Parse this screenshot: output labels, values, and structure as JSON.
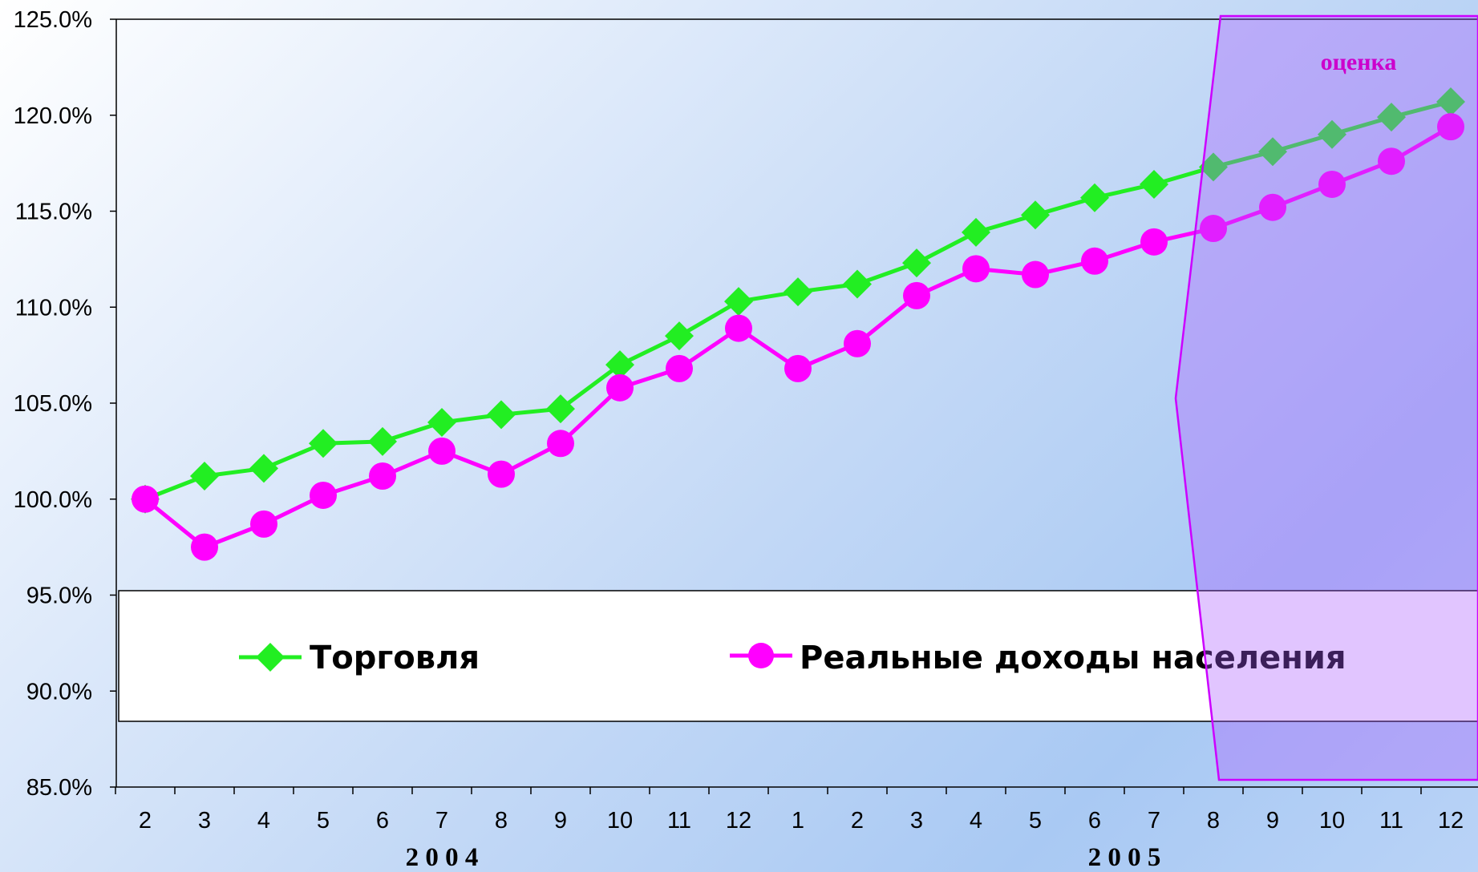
{
  "chart_data": {
    "type": "line",
    "title": "",
    "xlabel": "",
    "ylabel": "",
    "ylim": [
      85,
      125
    ],
    "yticks": [
      "125.0%",
      "120.0%",
      "115.0%",
      "110.0%",
      "105.0%",
      "100.0%",
      "95.0%",
      "90.0%",
      "85.0%"
    ],
    "categories": [
      "2",
      "3",
      "4",
      "5",
      "6",
      "7",
      "8",
      "9",
      "10",
      "11",
      "12",
      "1",
      "2",
      "3",
      "4",
      "5",
      "6",
      "7",
      "8",
      "9",
      "10",
      "11",
      "12"
    ],
    "years": [
      {
        "label": "2 0 0 4",
        "start_index": 0,
        "end_index": 10
      },
      {
        "label": "2 0 0 5",
        "start_index": 11,
        "end_index": 22
      }
    ],
    "series": [
      {
        "name": "Торговля",
        "color": "#22ee22",
        "marker": "diamond",
        "values": [
          100.0,
          101.2,
          101.6,
          102.9,
          103.0,
          104.0,
          104.4,
          104.7,
          107.0,
          108.5,
          110.3,
          110.8,
          111.2,
          112.3,
          113.9,
          114.8,
          115.7,
          116.4,
          117.3,
          118.1,
          119.0,
          119.9,
          120.7
        ]
      },
      {
        "name": "Реальные доходы населения",
        "color": "#ff00ff",
        "marker": "circle",
        "values": [
          100.0,
          97.5,
          98.7,
          100.2,
          101.2,
          102.5,
          101.3,
          102.9,
          105.8,
          106.8,
          108.9,
          106.8,
          108.1,
          110.6,
          112.0,
          111.7,
          112.4,
          113.4,
          114.1,
          115.2,
          116.4,
          117.6,
          119.4
        ]
      }
    ],
    "annotation": {
      "text": "оценка",
      "color": "#cc00cc",
      "start_index": 18
    },
    "legend_position": "bottom-inside"
  }
}
